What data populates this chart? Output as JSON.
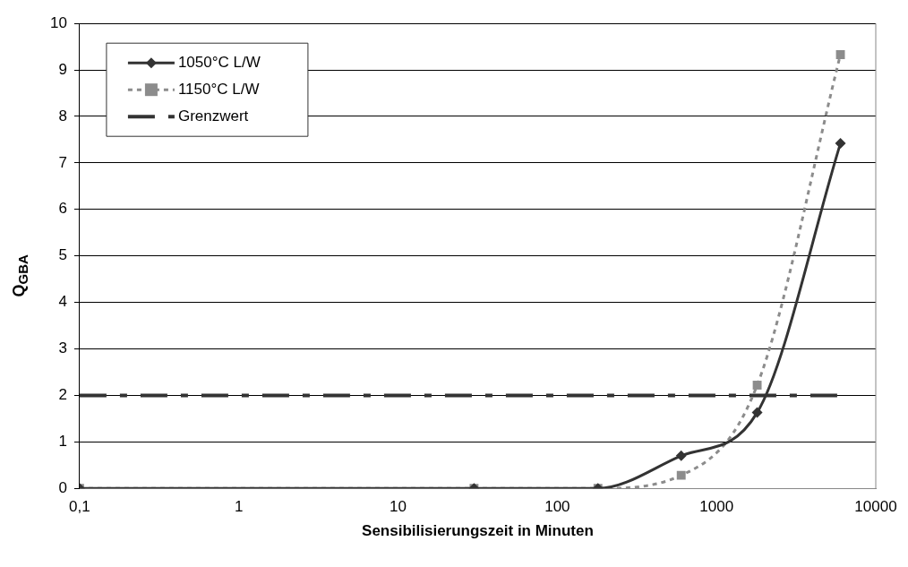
{
  "chart_data": {
    "type": "line",
    "xlabel": "Sensibilisierungszeit in Minuten",
    "ylabel": "Q$_{GBA}$",
    "x": [
      0.1,
      30,
      180,
      600,
      1800,
      6000
    ],
    "series": [
      {
        "name": "1050°C L/W",
        "color": "#333333",
        "marker": "diamond",
        "line_style": "solid",
        "values": [
          0,
          0,
          0,
          0.7,
          1.63,
          7.42
        ]
      },
      {
        "name": "1150°C L/W",
        "color": "#8c8c8c",
        "marker": "square",
        "line_style": "dashed",
        "values": [
          0,
          0,
          0,
          0.28,
          2.22,
          9.33
        ]
      }
    ],
    "ref_lines": [
      {
        "axis": "y",
        "value": 2,
        "label": "Grenzwert",
        "color": "#333333",
        "line_style": "dashed"
      }
    ],
    "log": "x",
    "xlim": [
      0.1,
      10000
    ],
    "xticks": [
      {
        "value": 0.1,
        "label": "0,1"
      },
      1,
      10,
      100,
      1000,
      10000
    ],
    "ylim": [
      0,
      10
    ],
    "yticks": [
      0,
      1,
      2,
      3,
      4,
      5,
      6,
      7,
      8,
      9,
      10
    ],
    "grid": "y",
    "legend": "top left"
  }
}
